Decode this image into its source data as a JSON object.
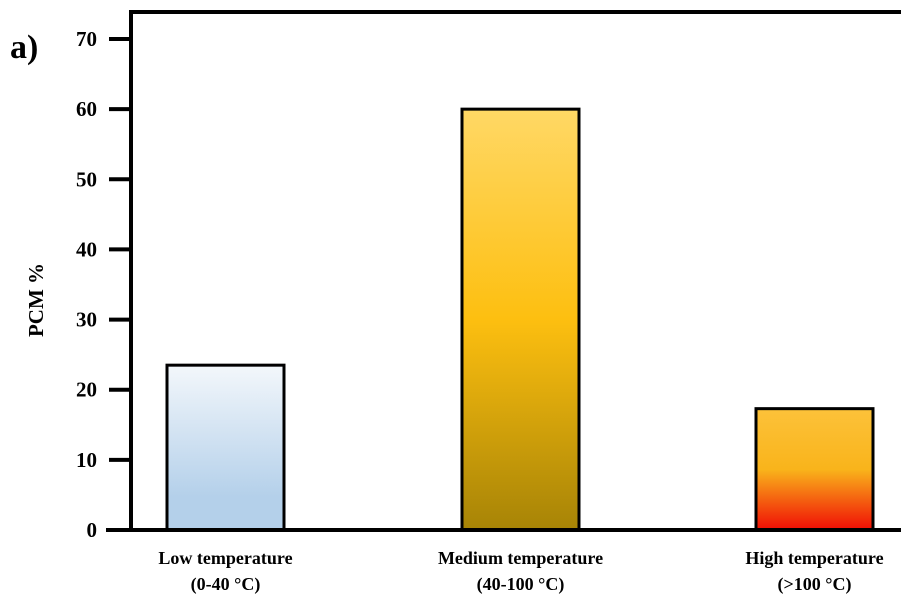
{
  "panel_label": "a)",
  "chart_data": {
    "type": "bar",
    "title": "",
    "xlabel": "",
    "ylabel": "PCM %",
    "ylim": [
      0,
      70
    ],
    "yticks": [
      0,
      10,
      20,
      30,
      40,
      50,
      60,
      70
    ],
    "grid": false,
    "categories": [
      {
        "line1": "Low temperature",
        "line2": "(0-40 °C)"
      },
      {
        "line1": "Medium temperature",
        "line2": "(40-100 °C)"
      },
      {
        "line1": "High temperature",
        "line2": "(>100 °C)"
      }
    ],
    "values": [
      23.5,
      60,
      17.3
    ],
    "bar_gradients": [
      [
        "#f3f7fb",
        "#b4d0ea"
      ],
      [
        "#ffd865",
        "#fdbf10",
        "#a78406"
      ],
      [
        "#fcc23a",
        "#f9b41b",
        "#f00d05"
      ]
    ]
  }
}
